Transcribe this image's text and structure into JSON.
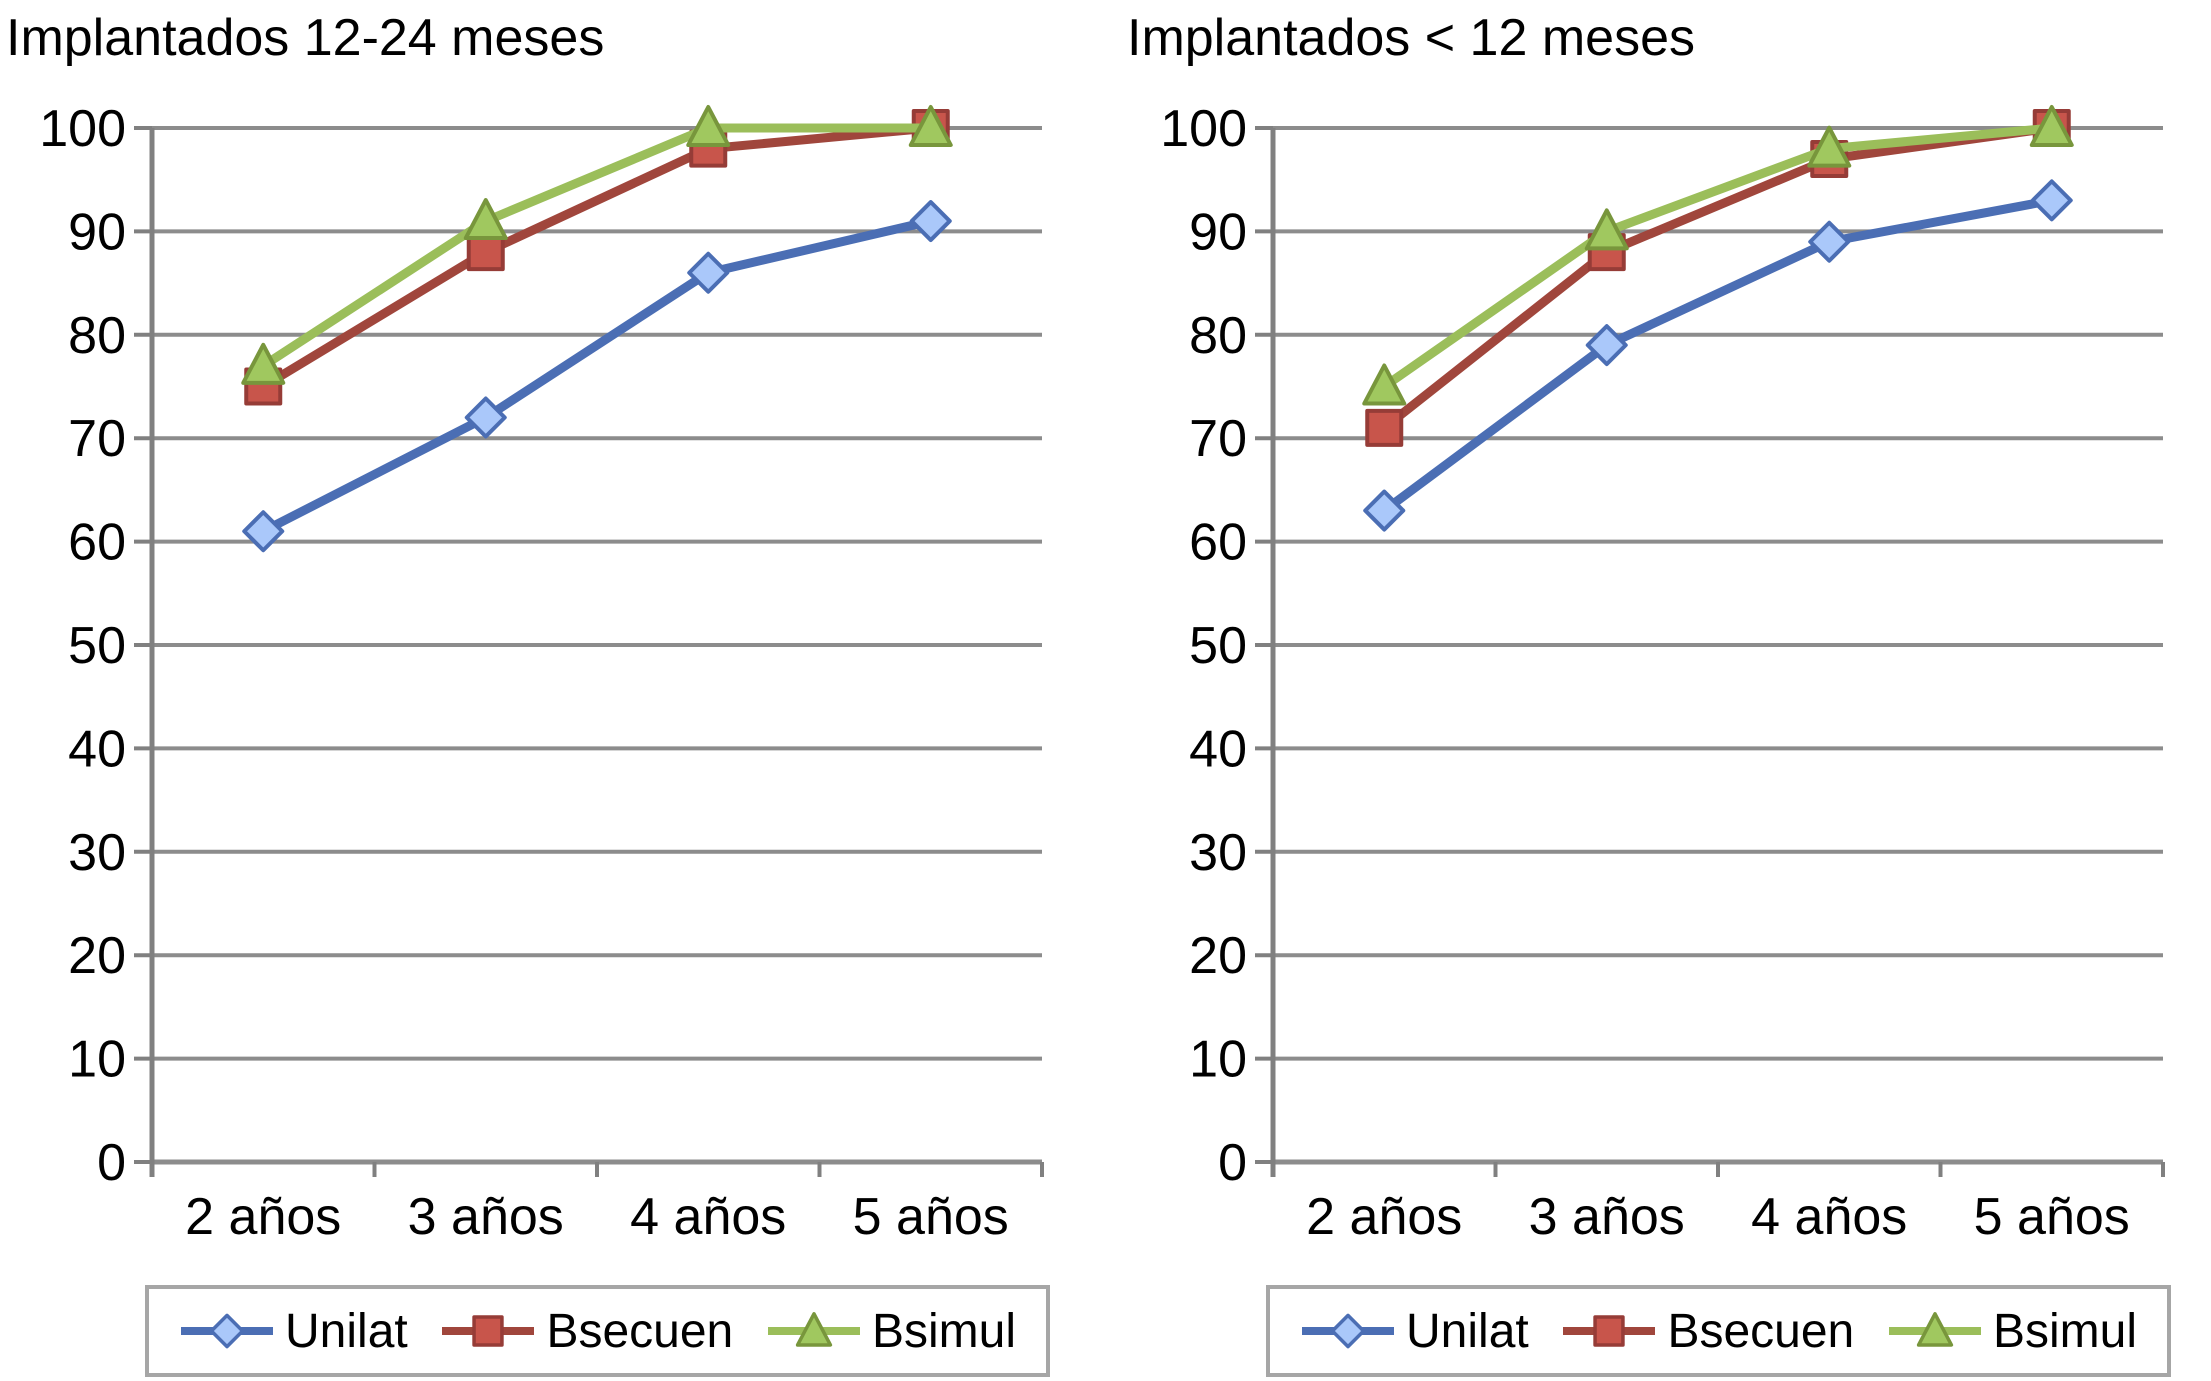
{
  "palette": {
    "background": "#FFFFFF",
    "grid_color": "#8C8C8C",
    "axis_color": "#808080",
    "text_color": "#000000",
    "legend_border_color": "#A6A6A6"
  },
  "chart_data": [
    {
      "type": "line",
      "title": "Implantados 12-24 meses",
      "categories": [
        "2 años",
        "3 años",
        "4 años",
        "5 años"
      ],
      "yticks": [
        0,
        10,
        20,
        30,
        40,
        50,
        60,
        70,
        80,
        90,
        100
      ],
      "ylim": [
        0,
        100
      ],
      "grid": true,
      "legend_position": "bottom",
      "series": [
        {
          "name": "Unilat",
          "marker": "diamond",
          "line_color": "#4B6EB4",
          "fill_color": "#AAC8FA",
          "border_color": "#4B6EB4",
          "values": [
            61,
            72,
            86,
            91
          ]
        },
        {
          "name": "Bsecuen",
          "marker": "square",
          "line_color": "#A0463C",
          "fill_color": "#C8554B",
          "border_color": "#963C37",
          "values": [
            75,
            88,
            98,
            100
          ]
        },
        {
          "name": "Bsimul",
          "marker": "triangle",
          "line_color": "#9BBE5A",
          "fill_color": "#A0C85F",
          "border_color": "#78963C",
          "values": [
            77,
            91,
            100,
            100
          ]
        }
      ]
    },
    {
      "type": "line",
      "title": "Implantados < 12 meses",
      "categories": [
        "2 años",
        "3 años",
        "4 años",
        "5 años"
      ],
      "yticks": [
        0,
        10,
        20,
        30,
        40,
        50,
        60,
        70,
        80,
        90,
        100
      ],
      "ylim": [
        0,
        100
      ],
      "grid": true,
      "legend_position": "bottom",
      "series": [
        {
          "name": "Unilat",
          "marker": "diamond",
          "line_color": "#4B6EB4",
          "fill_color": "#AAC8FA",
          "border_color": "#4B6EB4",
          "values": [
            63,
            79,
            89,
            93
          ]
        },
        {
          "name": "Bsecuen",
          "marker": "square",
          "line_color": "#A0463C",
          "fill_color": "#C8554B",
          "border_color": "#963C37",
          "values": [
            71,
            88,
            97,
            100
          ]
        },
        {
          "name": "Bsimul",
          "marker": "triangle",
          "line_color": "#9BBE5A",
          "fill_color": "#A0C85F",
          "border_color": "#78963C",
          "values": [
            75,
            90,
            98,
            100
          ]
        }
      ]
    }
  ]
}
